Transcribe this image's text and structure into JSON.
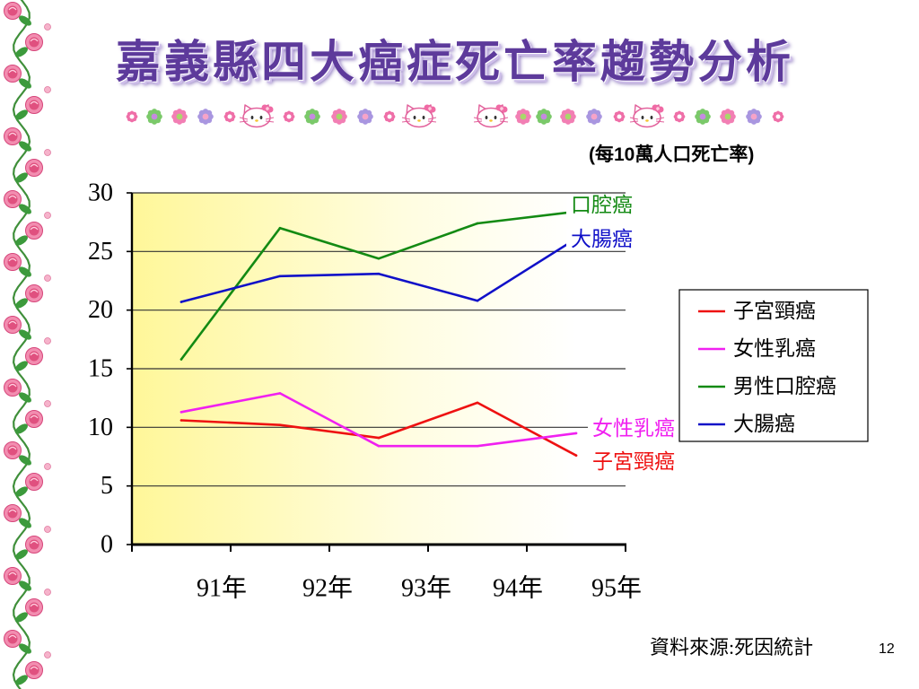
{
  "colors": {
    "title": "#5d3a9b",
    "background": "#ffffff",
    "plot_gradient_start": "#fff799",
    "plot_gradient_mid": "#fffde0",
    "plot_gradient_end": "#ffffff",
    "axis": "#000000",
    "gridline": "#333333",
    "legend_border": "#000000"
  },
  "icons": {
    "border": "rose-vine-border",
    "strip": [
      "flower-icon",
      "kitty-face-icon"
    ]
  },
  "slide": {
    "page_number": "12"
  },
  "chart_data": {
    "type": "line",
    "title": "嘉義縣四大癌症死亡率趨勢分析",
    "unit_note": "(每10萬人口死亡率)",
    "source": "資料來源:死因統計",
    "categories": [
      "91年",
      "92年",
      "93年",
      "94年",
      "95年"
    ],
    "ylim": [
      0,
      30
    ],
    "yticks": [
      "0",
      "5",
      "10",
      "15",
      "20",
      "25",
      "30"
    ],
    "grid": true,
    "legend_position": "right",
    "series": [
      {
        "name": "子宮頸癌",
        "label": "子宮頸癌",
        "color": "#ee1111",
        "values": [
          10.6,
          10.2,
          9.1,
          12.1,
          7.6
        ]
      },
      {
        "name": "女性乳癌",
        "label": "女性乳癌",
        "color": "#f020f0",
        "values": [
          11.3,
          12.9,
          8.4,
          8.4,
          9.5
        ]
      },
      {
        "name": "男性口腔癌",
        "label": "口腔癌",
        "color": "#138a13",
        "values": [
          15.8,
          27.0,
          24.4,
          27.4,
          28.4
        ]
      },
      {
        "name": "大腸癌",
        "label": "大腸癌",
        "color": "#1010c8",
        "values": [
          20.7,
          22.9,
          23.1,
          20.8,
          26.1
        ]
      }
    ]
  }
}
